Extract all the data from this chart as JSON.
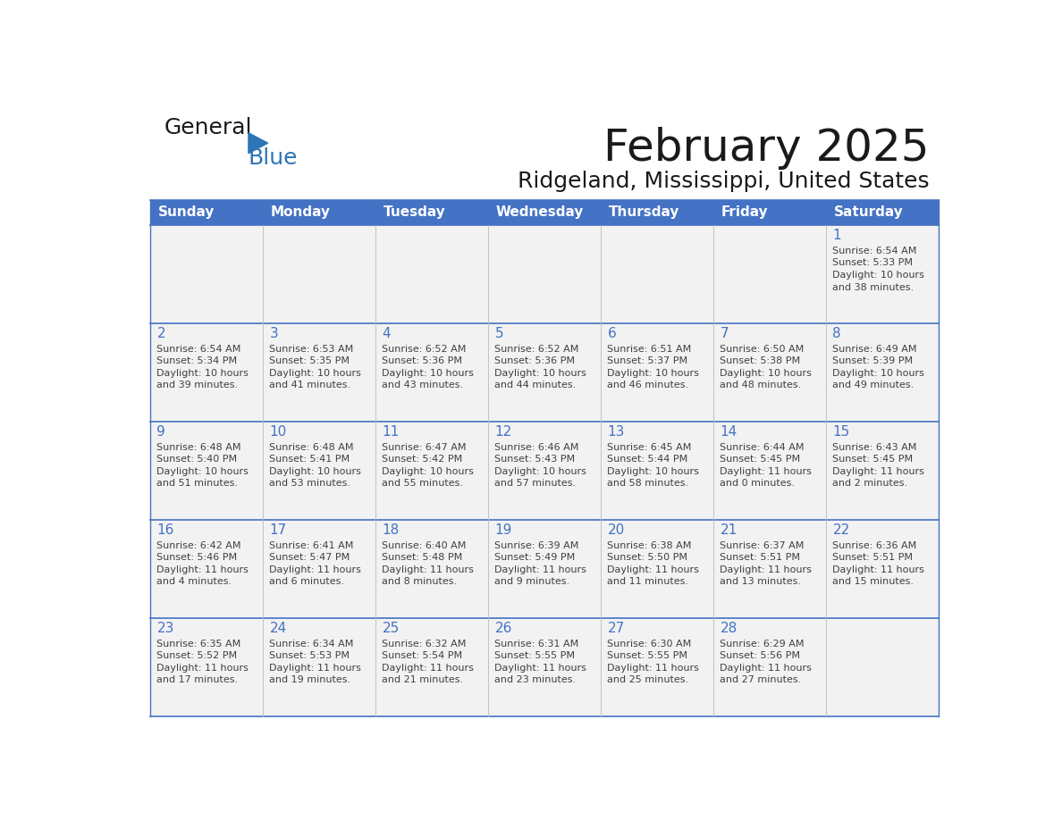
{
  "title": "February 2025",
  "subtitle": "Ridgeland, Mississippi, United States",
  "header_bg": "#4472C4",
  "header_text_color": "#FFFFFF",
  "days_of_week": [
    "Sunday",
    "Monday",
    "Tuesday",
    "Wednesday",
    "Thursday",
    "Friday",
    "Saturday"
  ],
  "row_bg": "#F2F2F2",
  "cell_border_color": "#4472C4",
  "day_number_color": "#4472C4",
  "info_text_color": "#404040",
  "calendar_data": [
    [
      null,
      null,
      null,
      null,
      null,
      null,
      {
        "day": 1,
        "sunrise": "6:54 AM",
        "sunset": "5:33 PM",
        "daylight": "10 hours\nand 38 minutes."
      }
    ],
    [
      {
        "day": 2,
        "sunrise": "6:54 AM",
        "sunset": "5:34 PM",
        "daylight": "10 hours\nand 39 minutes."
      },
      {
        "day": 3,
        "sunrise": "6:53 AM",
        "sunset": "5:35 PM",
        "daylight": "10 hours\nand 41 minutes."
      },
      {
        "day": 4,
        "sunrise": "6:52 AM",
        "sunset": "5:36 PM",
        "daylight": "10 hours\nand 43 minutes."
      },
      {
        "day": 5,
        "sunrise": "6:52 AM",
        "sunset": "5:36 PM",
        "daylight": "10 hours\nand 44 minutes."
      },
      {
        "day": 6,
        "sunrise": "6:51 AM",
        "sunset": "5:37 PM",
        "daylight": "10 hours\nand 46 minutes."
      },
      {
        "day": 7,
        "sunrise": "6:50 AM",
        "sunset": "5:38 PM",
        "daylight": "10 hours\nand 48 minutes."
      },
      {
        "day": 8,
        "sunrise": "6:49 AM",
        "sunset": "5:39 PM",
        "daylight": "10 hours\nand 49 minutes."
      }
    ],
    [
      {
        "day": 9,
        "sunrise": "6:48 AM",
        "sunset": "5:40 PM",
        "daylight": "10 hours\nand 51 minutes."
      },
      {
        "day": 10,
        "sunrise": "6:48 AM",
        "sunset": "5:41 PM",
        "daylight": "10 hours\nand 53 minutes."
      },
      {
        "day": 11,
        "sunrise": "6:47 AM",
        "sunset": "5:42 PM",
        "daylight": "10 hours\nand 55 minutes."
      },
      {
        "day": 12,
        "sunrise": "6:46 AM",
        "sunset": "5:43 PM",
        "daylight": "10 hours\nand 57 minutes."
      },
      {
        "day": 13,
        "sunrise": "6:45 AM",
        "sunset": "5:44 PM",
        "daylight": "10 hours\nand 58 minutes."
      },
      {
        "day": 14,
        "sunrise": "6:44 AM",
        "sunset": "5:45 PM",
        "daylight": "11 hours\nand 0 minutes."
      },
      {
        "day": 15,
        "sunrise": "6:43 AM",
        "sunset": "5:45 PM",
        "daylight": "11 hours\nand 2 minutes."
      }
    ],
    [
      {
        "day": 16,
        "sunrise": "6:42 AM",
        "sunset": "5:46 PM",
        "daylight": "11 hours\nand 4 minutes."
      },
      {
        "day": 17,
        "sunrise": "6:41 AM",
        "sunset": "5:47 PM",
        "daylight": "11 hours\nand 6 minutes."
      },
      {
        "day": 18,
        "sunrise": "6:40 AM",
        "sunset": "5:48 PM",
        "daylight": "11 hours\nand 8 minutes."
      },
      {
        "day": 19,
        "sunrise": "6:39 AM",
        "sunset": "5:49 PM",
        "daylight": "11 hours\nand 9 minutes."
      },
      {
        "day": 20,
        "sunrise": "6:38 AM",
        "sunset": "5:50 PM",
        "daylight": "11 hours\nand 11 minutes."
      },
      {
        "day": 21,
        "sunrise": "6:37 AM",
        "sunset": "5:51 PM",
        "daylight": "11 hours\nand 13 minutes."
      },
      {
        "day": 22,
        "sunrise": "6:36 AM",
        "sunset": "5:51 PM",
        "daylight": "11 hours\nand 15 minutes."
      }
    ],
    [
      {
        "day": 23,
        "sunrise": "6:35 AM",
        "sunset": "5:52 PM",
        "daylight": "11 hours\nand 17 minutes."
      },
      {
        "day": 24,
        "sunrise": "6:34 AM",
        "sunset": "5:53 PM",
        "daylight": "11 hours\nand 19 minutes."
      },
      {
        "day": 25,
        "sunrise": "6:32 AM",
        "sunset": "5:54 PM",
        "daylight": "11 hours\nand 21 minutes."
      },
      {
        "day": 26,
        "sunrise": "6:31 AM",
        "sunset": "5:55 PM",
        "daylight": "11 hours\nand 23 minutes."
      },
      {
        "day": 27,
        "sunrise": "6:30 AM",
        "sunset": "5:55 PM",
        "daylight": "11 hours\nand 25 minutes."
      },
      {
        "day": 28,
        "sunrise": "6:29 AM",
        "sunset": "5:56 PM",
        "daylight": "11 hours\nand 27 minutes."
      },
      null
    ]
  ],
  "logo_text1": "General",
  "logo_text2": "Blue",
  "logo_color1": "#1a1a1a",
  "logo_color2": "#2E75B6",
  "logo_triangle_color": "#2E75B6",
  "title_fontsize": 36,
  "subtitle_fontsize": 18,
  "header_fontsize": 11,
  "day_num_fontsize": 11,
  "info_fontsize": 8,
  "logo_fontsize": 18
}
